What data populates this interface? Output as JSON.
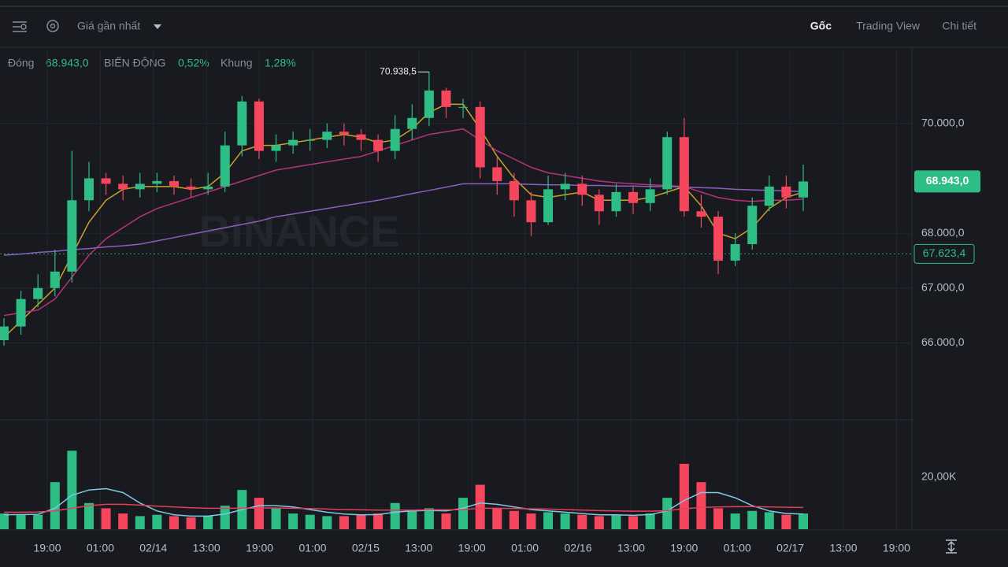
{
  "toolbar": {
    "price_type": "Giá gần nhất",
    "tabs": [
      "Gốc",
      "Trading View",
      "Chi tiết"
    ]
  },
  "stats": {
    "close_label": "Đóng",
    "close": "68.943,0",
    "change_label": "BIẾN ĐỘNG",
    "change": "0,52%",
    "range_label": "Khung",
    "range": "1,28%"
  },
  "watermark": "BINANCE",
  "chart_data": {
    "type": "candlestick",
    "up_color": "#2ebd85",
    "down_color": "#f6465d",
    "open": [
      66050,
      66300,
      66800,
      67000,
      67300,
      68600,
      69000,
      68900,
      68800,
      68900,
      68950,
      68850,
      68800,
      68850,
      69600,
      70400,
      69500,
      69600,
      69700,
      69700,
      69850,
      69800,
      69700,
      69500,
      69900,
      70100,
      70600,
      70300,
      70300,
      69200,
      68950,
      68600,
      68200,
      68800,
      68900,
      68700,
      68400,
      68750,
      68550,
      68800,
      69750,
      68400,
      68300,
      67500,
      67800,
      68500,
      68850,
      68650
    ],
    "high": [
      66450,
      66950,
      67250,
      67700,
      69500,
      69300,
      69100,
      69050,
      69100,
      69100,
      69050,
      69000,
      69100,
      69850,
      70500,
      70450,
      69800,
      69850,
      69900,
      70000,
      70000,
      69900,
      69800,
      70150,
      70350,
      70938.5,
      70650,
      70450,
      70400,
      69400,
      69100,
      68750,
      69050,
      69100,
      69050,
      68800,
      68900,
      68850,
      69000,
      69850,
      70100,
      68700,
      68400,
      68000,
      68650,
      69050,
      69050,
      69250
    ],
    "low": [
      65950,
      66150,
      66650,
      66850,
      67100,
      68400,
      68700,
      68600,
      68650,
      68750,
      68700,
      68650,
      68700,
      68750,
      69400,
      69350,
      69300,
      69450,
      69500,
      69550,
      69600,
      69500,
      69300,
      69350,
      69700,
      69950,
      70100,
      70100,
      69000,
      68700,
      68300,
      67950,
      68150,
      68600,
      68500,
      68150,
      68300,
      68350,
      68400,
      68700,
      68300,
      68100,
      67250,
      67400,
      67700,
      68400,
      68450,
      68400
    ],
    "close": [
      66300,
      66800,
      67000,
      67300,
      68600,
      69000,
      68900,
      68800,
      68900,
      68950,
      68850,
      68800,
      68850,
      69600,
      70400,
      69500,
      69600,
      69700,
      69700,
      69850,
      69800,
      69700,
      69500,
      69900,
      70100,
      70600,
      70300,
      70300,
      69200,
      68950,
      68600,
      68200,
      68800,
      68900,
      68700,
      68400,
      68750,
      68550,
      68800,
      69750,
      68400,
      68300,
      67500,
      67800,
      68500,
      68850,
      68650,
      68943
    ],
    "series": [
      {
        "color": "#c9a227",
        "values": [
          66100,
          66400,
          66700,
          67000,
          67600,
          68200,
          68600,
          68800,
          68850,
          68850,
          68850,
          68800,
          68850,
          69100,
          69500,
          69600,
          69600,
          69650,
          69700,
          69750,
          69800,
          69750,
          69650,
          69700,
          69900,
          70200,
          70350,
          70350,
          69900,
          69400,
          69000,
          68700,
          68650,
          68700,
          68750,
          68600,
          68600,
          68600,
          68650,
          68750,
          68850,
          68500,
          68000,
          67900,
          68100,
          68450,
          68650,
          68750
        ]
      },
      {
        "color": "#b8327a",
        "values": [
          66500,
          66550,
          66600,
          66800,
          67200,
          67600,
          67900,
          68100,
          68300,
          68450,
          68550,
          68650,
          68750,
          68850,
          68950,
          69050,
          69150,
          69200,
          69250,
          69300,
          69350,
          69400,
          69500,
          69600,
          69700,
          69800,
          69850,
          69900,
          69700,
          69500,
          69350,
          69200,
          69100,
          69050,
          69000,
          68950,
          68920,
          68900,
          68880,
          68870,
          68850,
          68750,
          68650,
          68600,
          68580,
          68600,
          68600,
          68620
        ]
      },
      {
        "color": "#8a5fbf",
        "values": [
          67600,
          67620,
          67650,
          67670,
          67700,
          67720,
          67750,
          67770,
          67800,
          67860,
          67920,
          67980,
          68040,
          68100,
          68160,
          68220,
          68300,
          68350,
          68400,
          68450,
          68500,
          68550,
          68600,
          68660,
          68720,
          68780,
          68840,
          68900,
          68900,
          68900,
          68900,
          68890,
          68880,
          68880,
          68870,
          68870,
          68860,
          68860,
          68850,
          68850,
          68840,
          68830,
          68820,
          68800,
          68790,
          68780,
          68770,
          68760
        ]
      }
    ],
    "ylim": [
      64600,
      71360
    ],
    "yticks": [
      {
        "value": 66000,
        "label": "66.000,0"
      },
      {
        "value": 67000,
        "label": "67.000,0"
      },
      {
        "value": 68000,
        "label": "68.000,0"
      },
      {
        "value": 70000,
        "label": "70.000,0"
      }
    ],
    "xticks": [
      "19:00",
      "01:00",
      "02/14",
      "13:00",
      "19:00",
      "01:00",
      "02/15",
      "13:00",
      "19:00",
      "01:00",
      "02/16",
      "13:00",
      "19:00",
      "01:00",
      "02/17",
      "13:00",
      "19:00"
    ],
    "grid": true,
    "max_annotation": {
      "value": 70938.5,
      "label": "70.938,5"
    },
    "last_price": {
      "value": 68943,
      "label": "68.943,0"
    },
    "ref_price": {
      "value": 67623.4,
      "label": "67.623,4"
    },
    "volume": {
      "values": [
        6000,
        5500,
        5500,
        18000,
        30000,
        10000,
        8000,
        6000,
        5000,
        5500,
        5000,
        4500,
        5000,
        9000,
        15000,
        12000,
        8000,
        6000,
        5500,
        5000,
        5000,
        5500,
        6000,
        10000,
        7000,
        8000,
        6000,
        12000,
        17000,
        8000,
        7000,
        6000,
        6500,
        6000,
        5500,
        5000,
        5500,
        5000,
        6000,
        12000,
        25000,
        18000,
        8000,
        6000,
        7000,
        6500,
        5500,
        6000
      ],
      "series": [
        {
          "color": "#7ec8e3",
          "values": [
            5500,
            5600,
            5700,
            8000,
            13000,
            15000,
            15500,
            14000,
            10000,
            7000,
            5500,
            5000,
            5000,
            5800,
            7500,
            9000,
            9000,
            8500,
            7500,
            6500,
            5800,
            5500,
            5600,
            6500,
            7000,
            7200,
            7000,
            8000,
            10000,
            9500,
            8500,
            7500,
            7000,
            6500,
            6000,
            5500,
            5500,
            5300,
            5600,
            7000,
            11000,
            14000,
            14000,
            12000,
            9000,
            7000,
            6000,
            5800
          ]
        },
        {
          "color": "#e0405a",
          "values": [
            6500,
            6500,
            6600,
            7000,
            8000,
            9000,
            9500,
            9500,
            9200,
            8800,
            8500,
            8200,
            8000,
            8000,
            8000,
            8100,
            8100,
            8000,
            7900,
            7700,
            7500,
            7400,
            7300,
            7300,
            7300,
            7400,
            7400,
            7500,
            8000,
            8000,
            7900,
            7800,
            7700,
            7500,
            7300,
            7100,
            7000,
            6900,
            6900,
            7100,
            7800,
            8300,
            8500,
            8600,
            8600,
            8500,
            8400,
            8300
          ]
        }
      ],
      "ylim": [
        0,
        41250
      ],
      "yticks": [
        {
          "value": 20000,
          "label": "20,00K"
        }
      ]
    }
  }
}
